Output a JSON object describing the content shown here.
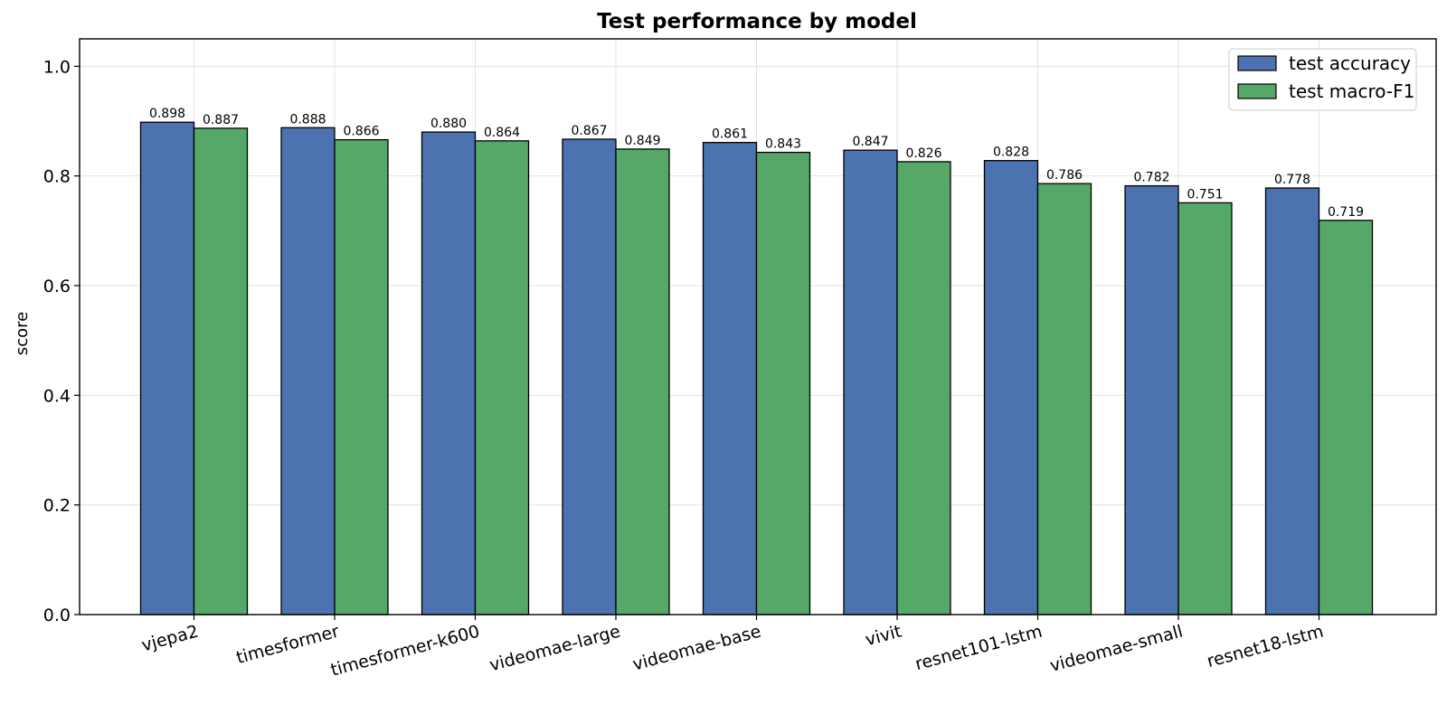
{
  "chart_data": {
    "type": "bar",
    "title": "Test performance by model",
    "xlabel": "",
    "ylabel": "score",
    "ylim": [
      0,
      1.05
    ],
    "yticks": [
      0.0,
      0.2,
      0.4,
      0.6,
      0.8,
      1.0
    ],
    "ytick_labels": [
      "0.0",
      "0.2",
      "0.4",
      "0.6",
      "0.8",
      "1.0"
    ],
    "grid": true,
    "legend_position": "top-right",
    "categories": [
      "vjepa2",
      "timesformer",
      "timesformer-k600",
      "videomae-large",
      "videomae-base",
      "vivit",
      "resnet101-lstm",
      "videomae-small",
      "resnet18-lstm"
    ],
    "series": [
      {
        "name": "test accuracy",
        "color": "#4c72b0",
        "values": [
          0.898,
          0.888,
          0.88,
          0.867,
          0.861,
          0.847,
          0.828,
          0.782,
          0.778
        ],
        "labels": [
          "0.898",
          "0.888",
          "0.880",
          "0.867",
          "0.861",
          "0.847",
          "0.828",
          "0.782",
          "0.778"
        ]
      },
      {
        "name": "test macro-F1",
        "color": "#55a868",
        "values": [
          0.887,
          0.866,
          0.864,
          0.849,
          0.843,
          0.826,
          0.786,
          0.751,
          0.719
        ],
        "labels": [
          "0.887",
          "0.866",
          "0.864",
          "0.849",
          "0.843",
          "0.826",
          "0.786",
          "0.751",
          "0.719"
        ]
      }
    ]
  }
}
